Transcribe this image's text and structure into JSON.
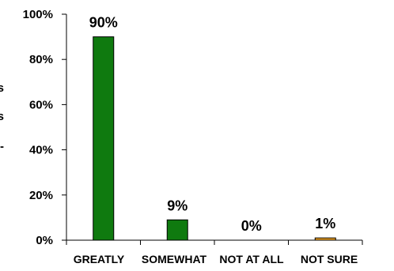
{
  "chart_data": {
    "type": "bar",
    "title": "",
    "xlabel": "",
    "ylabel": "",
    "ylim": [
      0,
      100
    ],
    "y_unit": "%",
    "y_ticks": [
      0,
      20,
      40,
      60,
      80,
      100
    ],
    "y_tick_labels": [
      "0%",
      "20%",
      "40%",
      "60%",
      "80%",
      "100%"
    ],
    "categories": [
      "GREATLY",
      "SOMEWHAT",
      "NOT AT ALL",
      "NOT SURE"
    ],
    "values": [
      90,
      9,
      0,
      1
    ],
    "data_labels": [
      "90%",
      "9%",
      "0%",
      "1%"
    ],
    "bar_colors": [
      "#0f7a0f",
      "#0f7a0f",
      "#0f7a0f",
      "#f5a623"
    ],
    "grid": false,
    "legend": "none",
    "y_axis_label_fragments": [
      "s",
      "s",
      "-"
    ]
  }
}
